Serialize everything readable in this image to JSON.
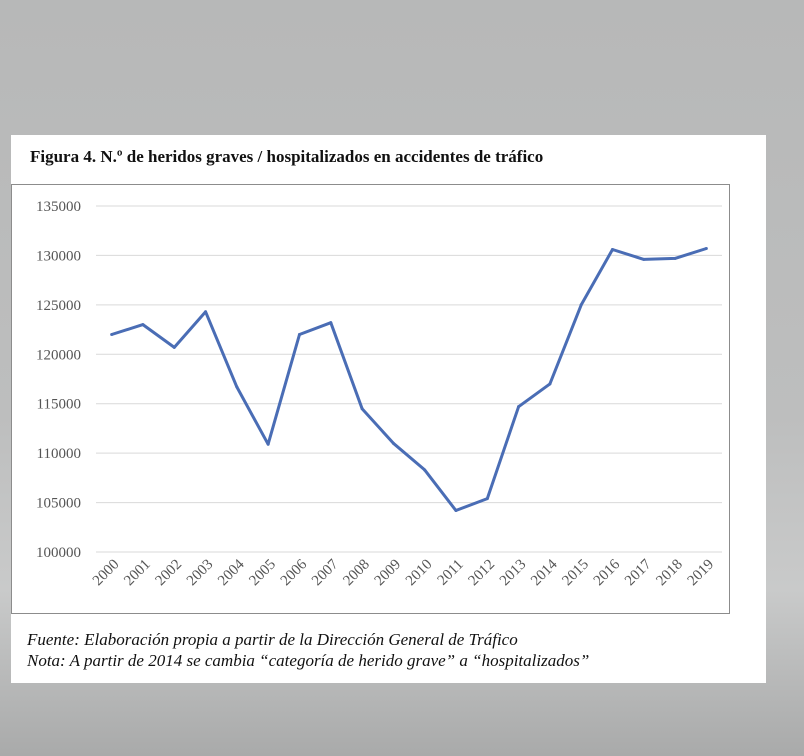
{
  "figure": {
    "title": "Figura 4. N.º de heridos graves / hospitalizados en accidentes de tráfico",
    "source_note": "Fuente: Elaboración propia a partir de la Dirección General de Tráfico",
    "change_note": "Nota: A partir de 2014 se cambia “categoría de herido grave” a “hospitalizados”"
  },
  "chart_data": {
    "type": "line",
    "title": "",
    "xlabel": "",
    "ylabel": "",
    "x": [
      "2000",
      "2001",
      "2002",
      "2003",
      "2004",
      "2005",
      "2006",
      "2007",
      "2008",
      "2009",
      "2010",
      "2011",
      "2012",
      "2013",
      "2014",
      "2015",
      "2016",
      "2017",
      "2018",
      "2019"
    ],
    "series": [
      {
        "values": [
          122000,
          123000,
          120700,
          124300,
          116700,
          110900,
          122000,
          123200,
          114500,
          111000,
          108300,
          104200,
          105400,
          114700,
          117000,
          125000,
          130600,
          129600,
          129700,
          130700
        ],
        "color": "#4a6db5"
      }
    ],
    "ylim": [
      100000,
      135000
    ],
    "yticks": [
      "100000",
      "105000",
      "110000",
      "115000",
      "120000",
      "125000",
      "130000",
      "135000"
    ],
    "grid": true,
    "legend": "none"
  }
}
